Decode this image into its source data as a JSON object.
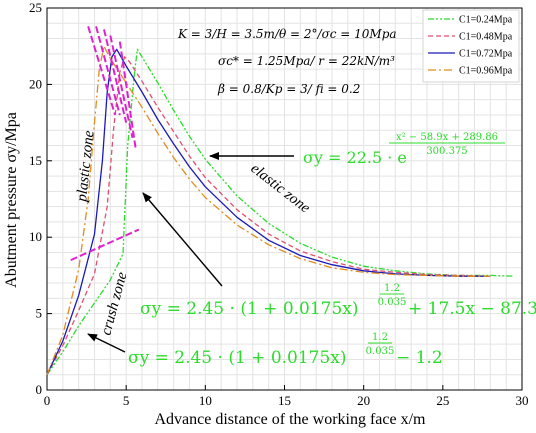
{
  "chart_data": {
    "type": "line",
    "xlabel": "Advance distance of the working face x/m",
    "ylabel": "Abutment pressure σy/Mpa",
    "xlim": [
      0,
      30
    ],
    "ylim": [
      0,
      25
    ],
    "xticks": [
      "0",
      "5",
      "10",
      "15",
      "20",
      "25",
      "30"
    ],
    "yticks": [
      "0",
      "5",
      "10",
      "15",
      "20",
      "25"
    ],
    "grid": true,
    "legend_position": "top-right",
    "params": [
      "K = 3/H = 3.5m/θ = 2°/σc = 10Mpa",
      "σc* = 1.25Mpa/ r = 22kN/m³",
      "β = 0.8/Kp = 3/ fi = 0.2"
    ],
    "zones": [
      "plastic zone",
      "elastic zone",
      "crush zone"
    ],
    "equations": {
      "elastic": {
        "lhs": "σy = 22.5 · e",
        "exp_num": "x² − 58.9x + 289.86",
        "exp_den": "300.375"
      },
      "plastic": {
        "lhs": "σy = 2.45 · (1 + 0.0175x)",
        "exp_num": "1.2",
        "exp_den": "0.035",
        "rest": "+ 17.5x − 87.3"
      },
      "crush": {
        "lhs": "σy = 2.45 · (1 + 0.0175x)",
        "exp_num": "1.2",
        "exp_den": "0.035",
        "rest": "− 1.2"
      }
    },
    "colors": {
      "c024": "#2bdc2b",
      "c048": "#e05070",
      "c072": "#1a1ab8",
      "c096": "#e08c1e",
      "magenta": "#e020d0",
      "equation": "#2bdc2b"
    },
    "series": [
      {
        "name": "C1=0.24Mpa",
        "color": "#2bdc2b",
        "dash": "6,2,2,2,2,2",
        "x": [
          0,
          1,
          2,
          3,
          4,
          4.8,
          5.1,
          5.5,
          5.7,
          6,
          7,
          8,
          9,
          10,
          12,
          14,
          16,
          18,
          20,
          22,
          24,
          26,
          28,
          29.5
        ],
        "y": [
          1.0,
          2.5,
          4.2,
          5.7,
          7.2,
          8.9,
          16,
          20.5,
          22.3,
          21.8,
          20.1,
          18.3,
          16.6,
          15.1,
          12.7,
          10.9,
          9.6,
          8.7,
          8.1,
          7.8,
          7.6,
          7.5,
          7.5,
          7.45
        ]
      },
      {
        "name": "C1=0.48Mpa",
        "color": "#e05070",
        "dash": "5,3",
        "x": [
          0,
          1,
          2,
          3,
          3.8,
          4.2,
          4.6,
          4.9,
          5.2,
          6,
          7,
          8,
          9,
          10,
          12,
          14,
          16,
          18,
          20,
          22,
          24,
          26,
          28
        ],
        "y": [
          1.0,
          2.9,
          5.2,
          7.6,
          12,
          17,
          20.8,
          21.8,
          21.5,
          20.2,
          18.5,
          16.9,
          15.3,
          13.9,
          11.8,
          10.2,
          9.1,
          8.4,
          7.9,
          7.7,
          7.55,
          7.5,
          7.45
        ]
      },
      {
        "name": "C1=0.72Mpa",
        "color": "#1a1ab8",
        "dash": "",
        "x": [
          0,
          1,
          2,
          3,
          3.5,
          3.8,
          4.1,
          4.4,
          5,
          6,
          7,
          8,
          9,
          10,
          12,
          14,
          16,
          18,
          20,
          22,
          24,
          26,
          28
        ],
        "y": [
          1.0,
          3.2,
          6.2,
          10.2,
          15,
          19.5,
          21.8,
          22.3,
          21.2,
          19.5,
          17.7,
          16.1,
          14.6,
          13.3,
          11.3,
          9.8,
          8.8,
          8.2,
          7.8,
          7.6,
          7.5,
          7.45,
          7.45
        ]
      },
      {
        "name": "C1=0.96Mpa",
        "color": "#e08c1e",
        "dash": "8,3,2,3",
        "x": [
          0,
          1,
          2,
          2.6,
          3.0,
          3.3,
          3.6,
          4,
          5,
          6,
          7,
          8,
          9,
          10,
          12,
          14,
          16,
          18,
          20,
          22,
          24,
          26,
          28
        ],
        "y": [
          1.0,
          3.6,
          7.9,
          12.5,
          17.5,
          21,
          22.5,
          21.7,
          20.1,
          18.5,
          16.8,
          15.2,
          13.8,
          12.6,
          10.8,
          9.5,
          8.6,
          8.0,
          7.7,
          7.55,
          7.5,
          7.45,
          7.45
        ]
      }
    ]
  }
}
